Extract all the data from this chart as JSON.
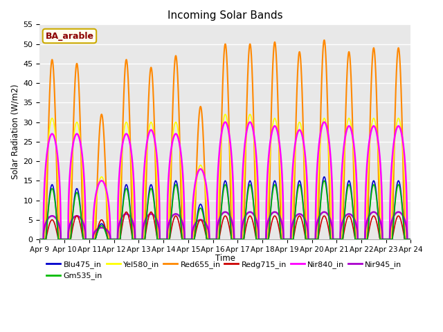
{
  "title": "Incoming Solar Bands",
  "xlabel": "Time",
  "ylabel": "Solar Radiation (W/m2)",
  "annotation": "BA_arable",
  "ylim": [
    0,
    55
  ],
  "n_days": 15,
  "start_day": 9,
  "series_order": [
    "Red655_in",
    "Yel580_in",
    "Nir840_in",
    "Nir945_in",
    "Redg715_in",
    "Blu475_in",
    "Gm535_in"
  ],
  "series": {
    "Blu475_in": {
      "color": "#0000cc",
      "lw": 1.2
    },
    "Gm535_in": {
      "color": "#00bb00",
      "lw": 1.2
    },
    "Yel580_in": {
      "color": "#ffff00",
      "lw": 1.2
    },
    "Red655_in": {
      "color": "#ff8800",
      "lw": 1.5
    },
    "Redg715_in": {
      "color": "#cc0000",
      "lw": 1.2
    },
    "Nir840_in": {
      "color": "#ff00ff",
      "lw": 1.8
    },
    "Nir945_in": {
      "color": "#aa00cc",
      "lw": 1.8
    }
  },
  "red655_peaks": [
    46,
    45,
    32,
    46,
    44,
    47,
    34,
    50,
    50,
    50.5,
    48,
    51,
    48,
    49,
    49
  ],
  "nir840_peaks": [
    27,
    27,
    15,
    27,
    28,
    27,
    18,
    30,
    30,
    29,
    28,
    30,
    29,
    29,
    29
  ],
  "yel580_peaks": [
    31,
    30,
    16,
    30,
    30,
    30,
    19,
    32,
    32,
    31,
    30,
    31,
    31,
    31,
    31
  ],
  "redg715_peaks": [
    5,
    6,
    5,
    7,
    7,
    6,
    5,
    6,
    6,
    6,
    6,
    6,
    6,
    6,
    6
  ],
  "blu475_peaks": [
    14,
    13,
    4,
    14,
    14,
    15,
    9,
    15,
    15,
    15,
    15,
    16,
    15,
    15,
    15
  ],
  "gm535_peaks": [
    13,
    12,
    3.5,
    13,
    13,
    14,
    8,
    14,
    14,
    14,
    14,
    15,
    14,
    14,
    14
  ],
  "nir945_peaks": [
    6,
    6,
    3,
    6.5,
    6.5,
    6.5,
    5,
    7,
    7,
    7,
    6.5,
    7,
    6.5,
    7,
    7
  ],
  "background_color": "#e8e8e8",
  "grid_color": "#ffffff",
  "legend_border_color": "#ccaa00",
  "legend_bg": "#fffff0",
  "annotation_text_color": "#8b0000",
  "fig_bg": "#ffffff"
}
